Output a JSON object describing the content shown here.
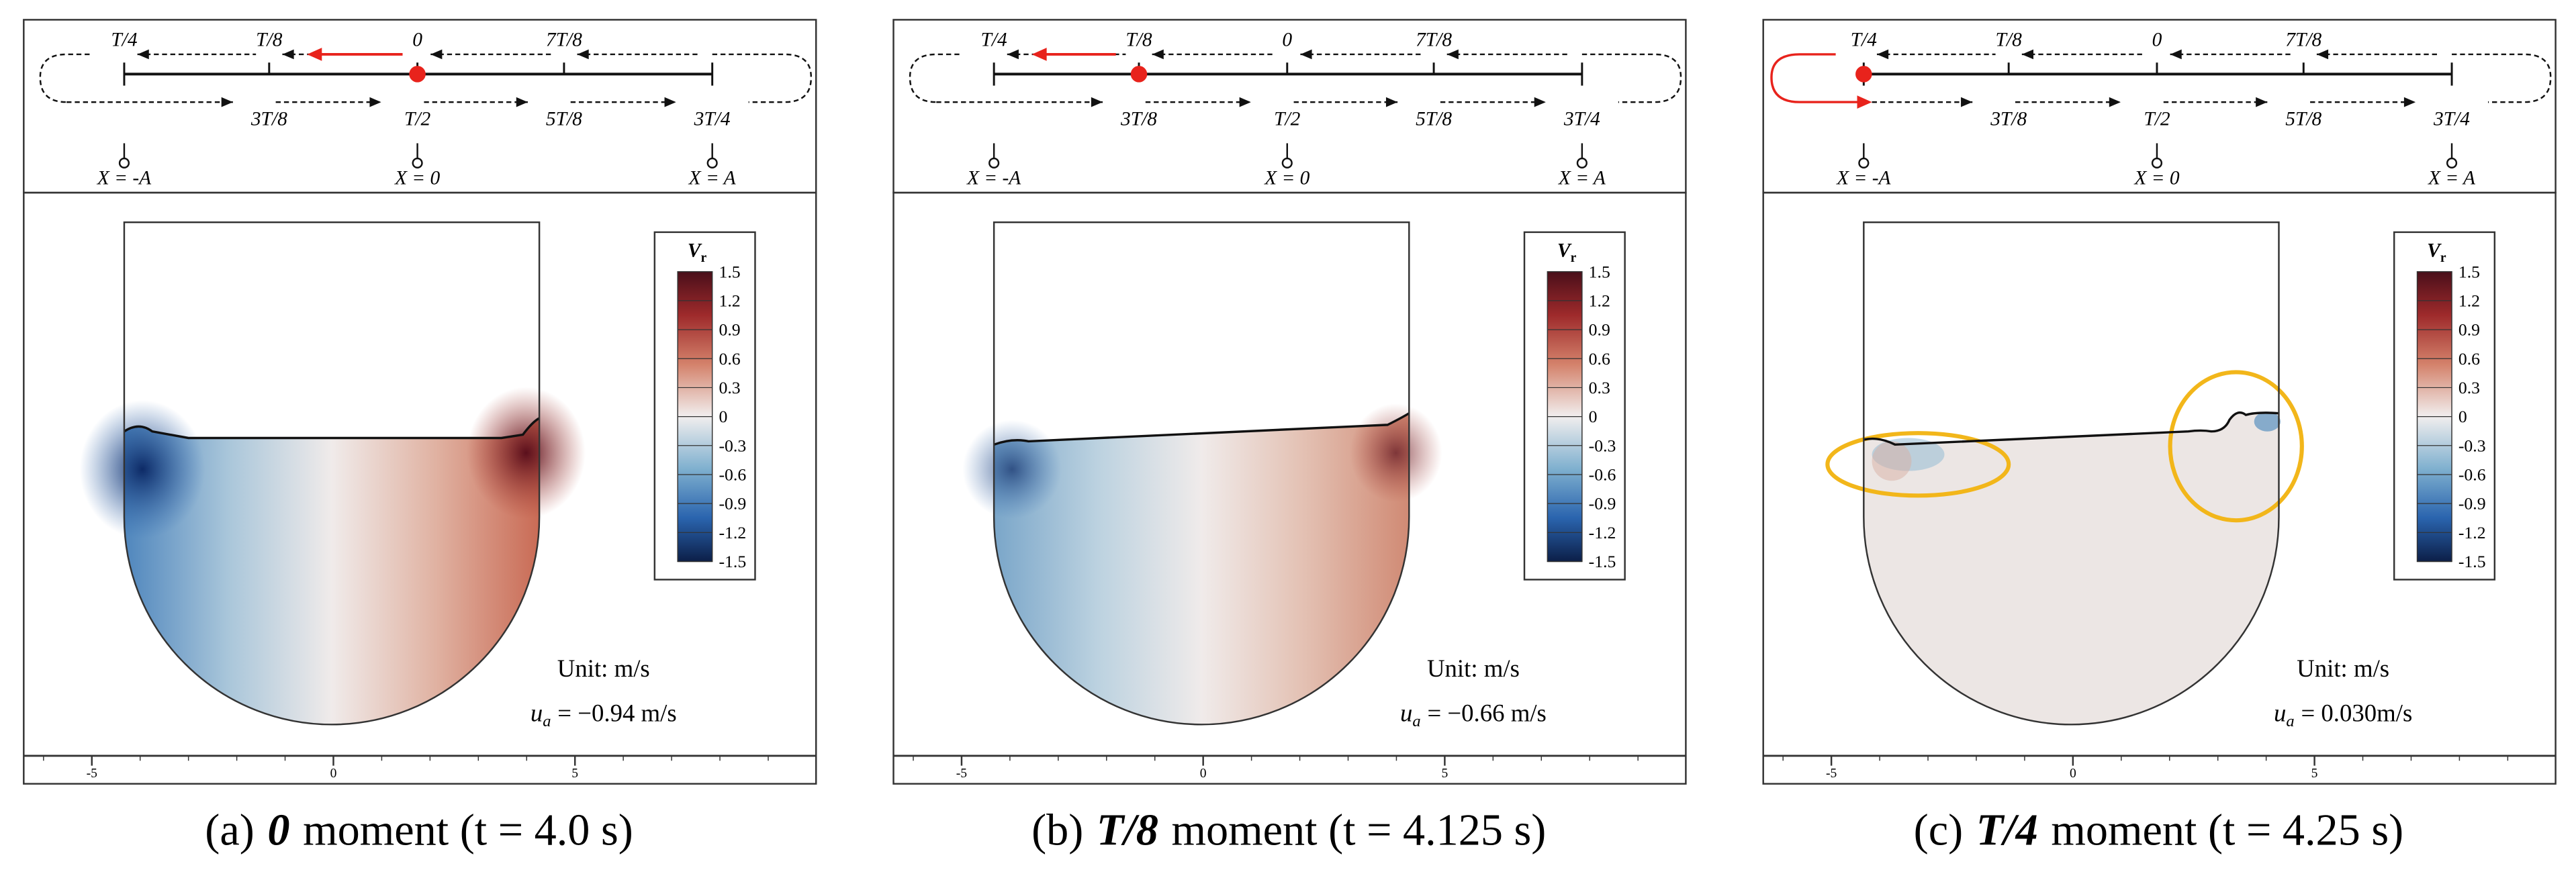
{
  "schematic": {
    "top_labels": [
      "T/4",
      "T/8",
      "0",
      "7T/8"
    ],
    "bottom_labels": [
      "3T/8",
      "T/2",
      "5T/8",
      "3T/4"
    ],
    "positions": [
      "X = -A",
      "X = 0",
      "X = A"
    ]
  },
  "colorbar": {
    "title": "V",
    "title_sub": "r",
    "ticks": [
      1.5,
      1.2,
      0.9,
      0.6,
      0.3,
      0,
      -0.3,
      -0.6,
      -0.9,
      -1.2,
      -1.5
    ]
  },
  "x_axis": {
    "xlim": [
      -6.4,
      10
    ],
    "xticks": [
      -5,
      0,
      5
    ]
  },
  "unit_label": "Unit: m/s",
  "velocity_symbol": "u",
  "velocity_sub": "a",
  "panels": [
    {
      "label": "(a)",
      "phase": "0",
      "caption": "moment (t = 4.0 s)",
      "velocity_value": "= −0.94 m/s"
    },
    {
      "label": "(b)",
      "phase": "T/8",
      "caption": "moment (t = 4.125 s)",
      "velocity_value": "= −0.66 m/s"
    },
    {
      "label": "(c)",
      "phase": "T/4",
      "caption": "moment (t = 4.25 s)",
      "velocity_value": "= 0.030m/s"
    }
  ]
}
